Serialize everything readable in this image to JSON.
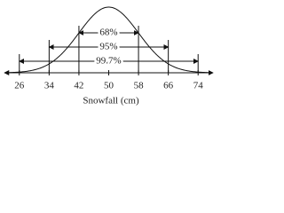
{
  "chart_data": {
    "type": "normal",
    "x_label": "Snowfall (cm)",
    "xlim": [
      22,
      78
    ],
    "xticks": [
      26,
      34,
      42,
      50,
      58,
      66,
      74
    ],
    "intervals": [
      {
        "label": "68%",
        "range": [
          42,
          58
        ]
      },
      {
        "label": "95%",
        "range": [
          34,
          66
        ]
      },
      {
        "label": "99.7%",
        "range": [
          26,
          74
        ]
      }
    ]
  }
}
